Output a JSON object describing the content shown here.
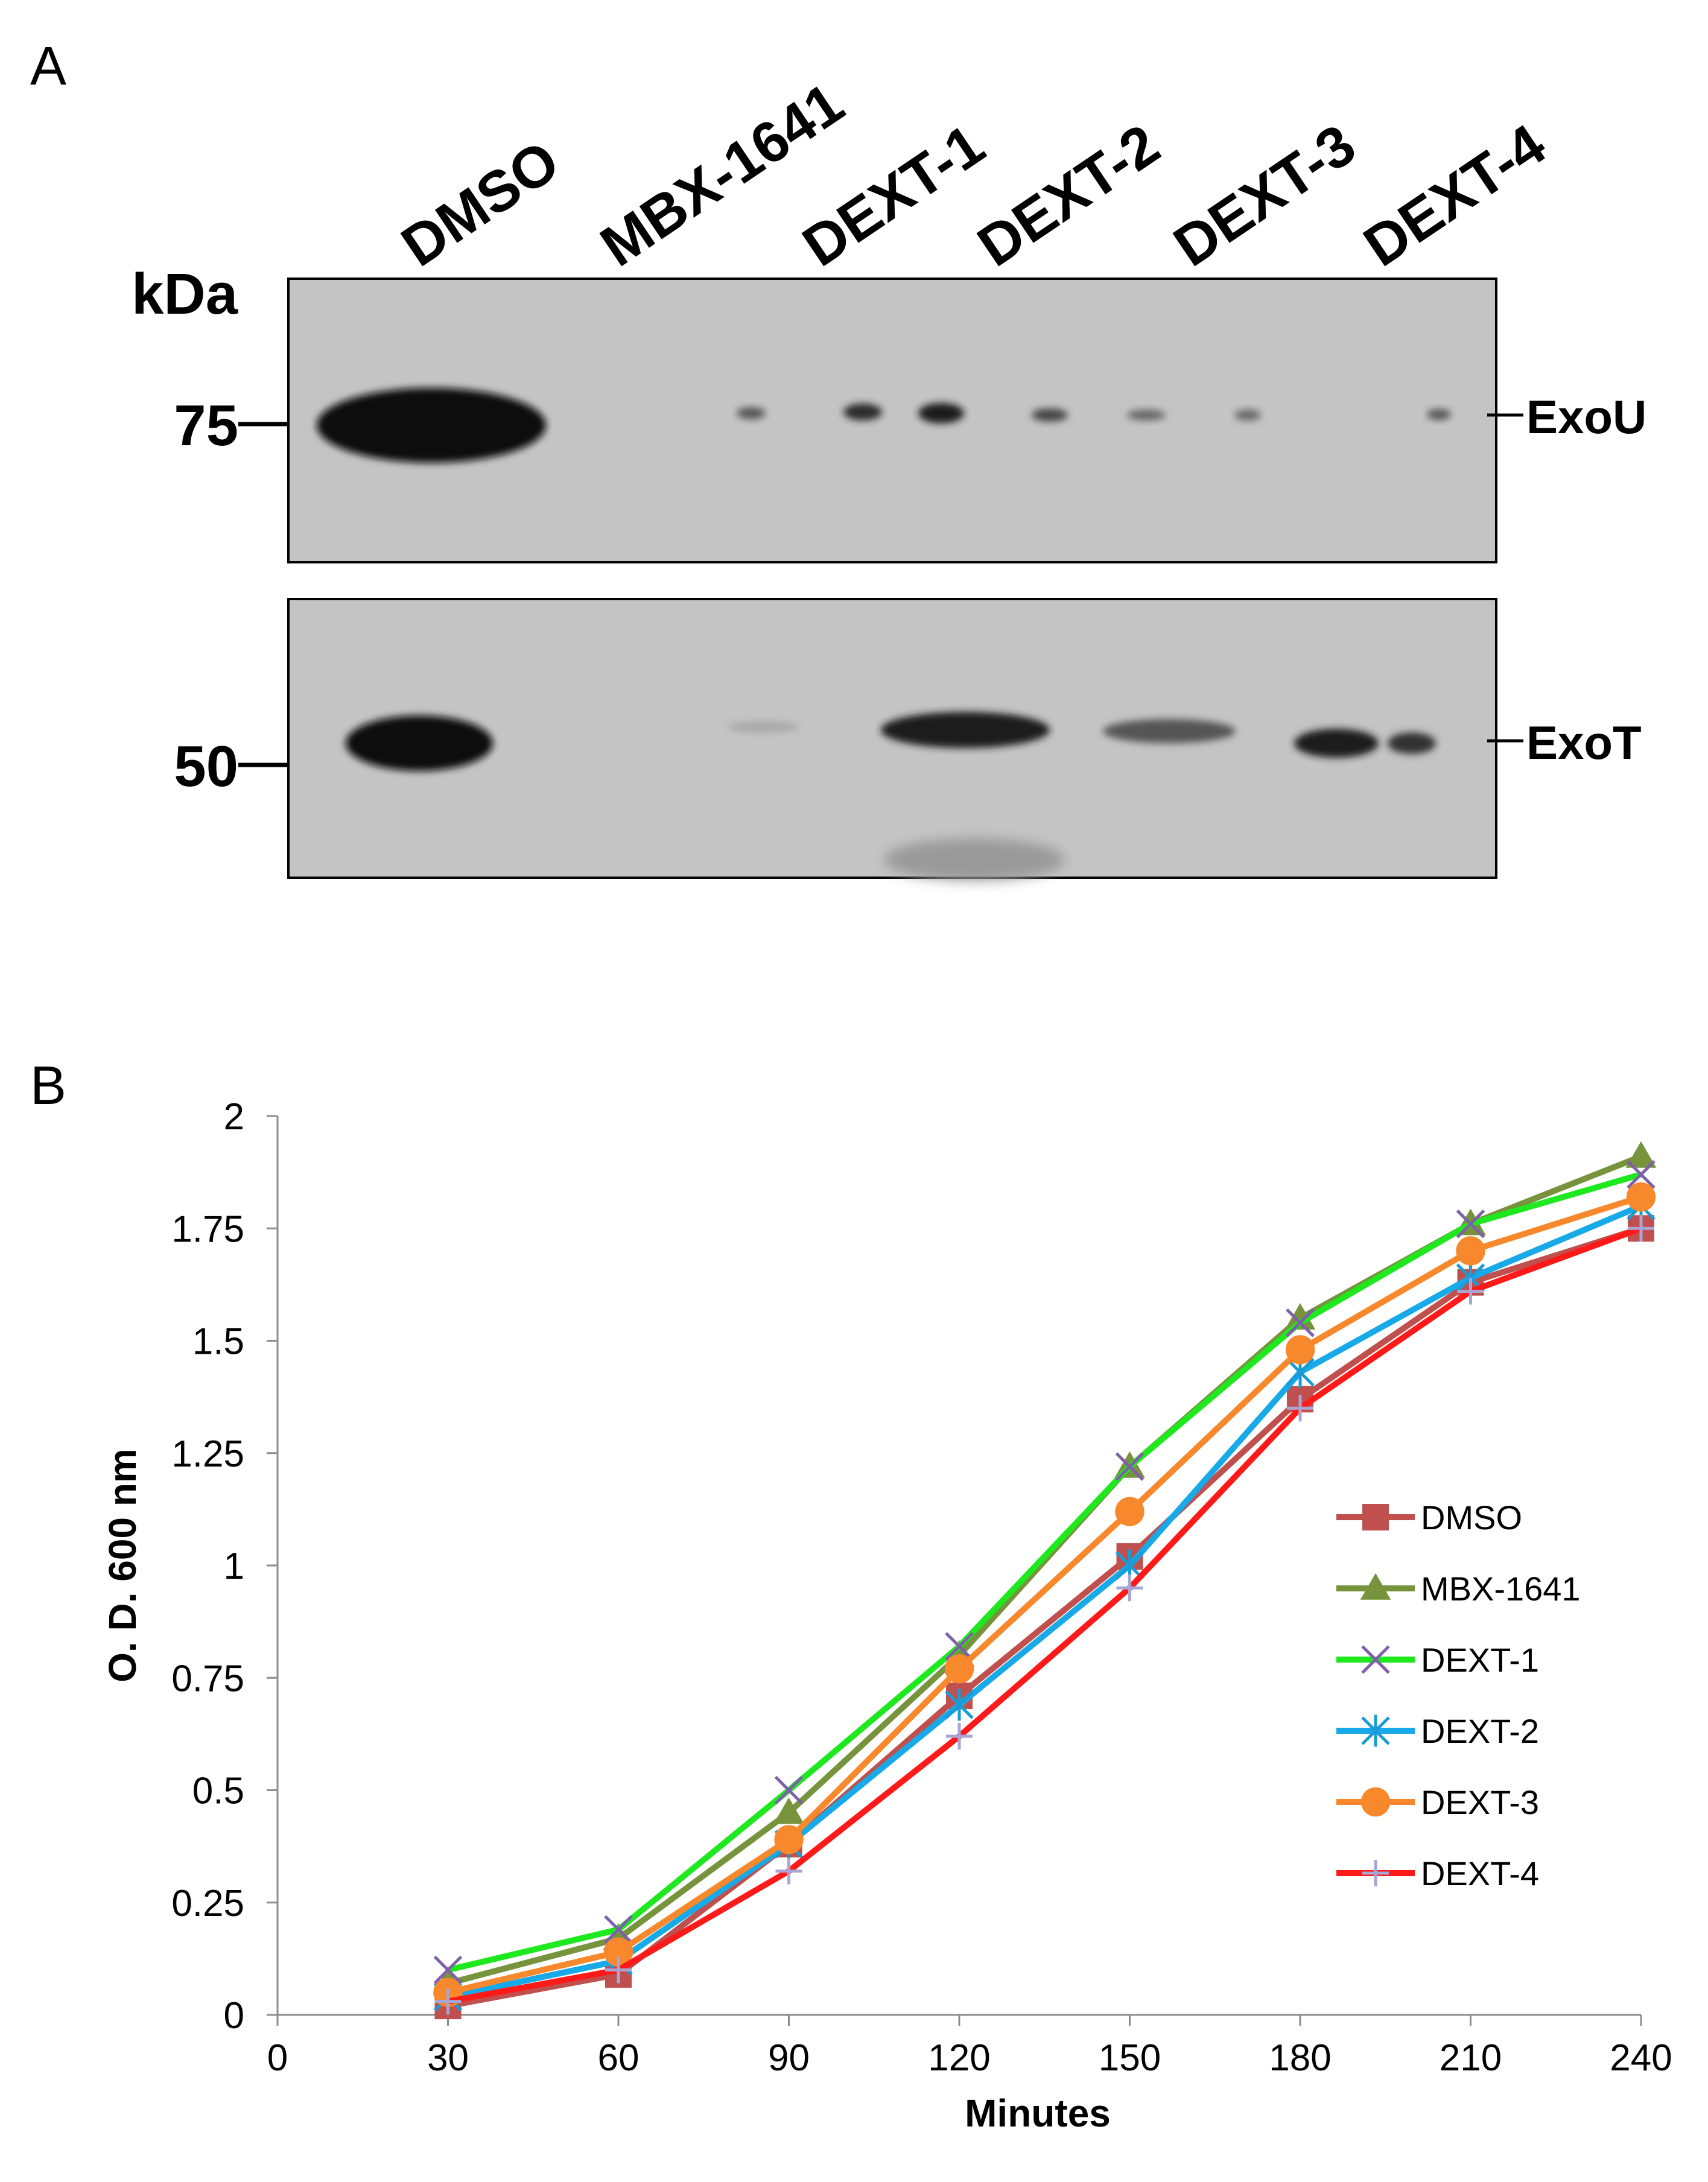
{
  "panel_a": {
    "letter": "A",
    "lanes": [
      "DMSO",
      "MBX-1641",
      "DEXT-1",
      "DEXT-2",
      "DEXT-3",
      "DEXT-4"
    ],
    "kda_label": "kDa",
    "blots": [
      {
        "marker": "75",
        "protein": "ExoU"
      },
      {
        "marker": "50",
        "protein": "ExoT"
      }
    ]
  },
  "panel_b": {
    "letter": "B"
  },
  "chart_data": {
    "type": "line",
    "title": "",
    "xlabel": "Minutes",
    "ylabel": "O. D. 600 nm",
    "xlim": [
      0,
      240
    ],
    "ylim": [
      0,
      2
    ],
    "x_ticks": [
      "0",
      "30",
      "60",
      "90",
      "120",
      "150",
      "180",
      "210",
      "240"
    ],
    "y_ticks": [
      "0",
      "0.25",
      "0.5",
      "0.75",
      "1",
      "1.25",
      "1.5",
      "1.75",
      "2"
    ],
    "grid": false,
    "legend_position": "right",
    "x": [
      30,
      60,
      90,
      120,
      150,
      180,
      210,
      240
    ],
    "series": [
      {
        "name": "DMSO",
        "color": "#c0504d",
        "marker": "square",
        "values": [
          0.02,
          0.09,
          0.38,
          0.71,
          1.02,
          1.37,
          1.63,
          1.75
        ]
      },
      {
        "name": "MBX-1641",
        "color": "#77933c",
        "marker": "triangle",
        "values": [
          0.07,
          0.17,
          0.45,
          0.8,
          1.22,
          1.55,
          1.76,
          1.91
        ]
      },
      {
        "name": "DEXT-1",
        "color": "#1ee81e",
        "marker": "x",
        "values": [
          0.1,
          0.19,
          0.5,
          0.82,
          1.22,
          1.54,
          1.76,
          1.87
        ]
      },
      {
        "name": "DEXT-2",
        "color": "#17a9e8",
        "marker": "asterisk",
        "values": [
          0.04,
          0.12,
          0.38,
          0.69,
          1.0,
          1.43,
          1.64,
          1.8
        ]
      },
      {
        "name": "DEXT-3",
        "color": "#f7882c",
        "marker": "circle",
        "values": [
          0.05,
          0.14,
          0.39,
          0.77,
          1.12,
          1.48,
          1.7,
          1.82
        ]
      },
      {
        "name": "DEXT-4",
        "color": "#ff1a1a",
        "marker": "plus",
        "values": [
          0.03,
          0.1,
          0.32,
          0.62,
          0.95,
          1.35,
          1.61,
          1.75
        ]
      }
    ]
  }
}
